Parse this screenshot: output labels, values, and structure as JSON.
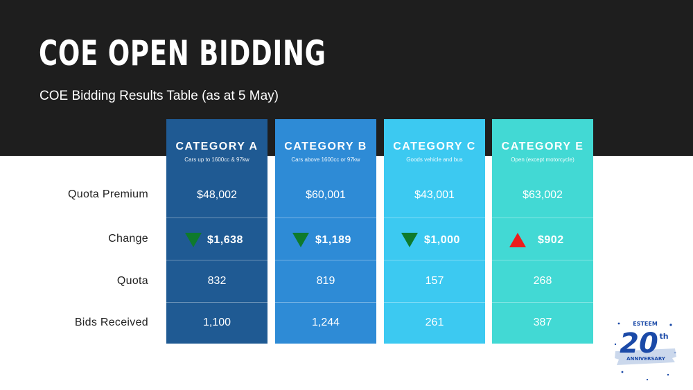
{
  "header": {
    "title": "COE OPEN BIDDING",
    "subtitle": "COE Bidding Results Table (as at 5 May)"
  },
  "row_labels": [
    "Quota Premium",
    "Change",
    "Quota",
    "Bids Received"
  ],
  "categories": [
    {
      "name": "CATEGORY A",
      "desc": "Cars up to 1600cc & 97kw",
      "premium": "$48,002",
      "change": "$1,638",
      "direction": "down",
      "quota": "832",
      "bids": "1,100",
      "color": "#1f5a93"
    },
    {
      "name": "CATEGORY B",
      "desc": "Cars above 1600cc or 97kw",
      "premium": "$60,001",
      "change": "$1,189",
      "direction": "down",
      "quota": "819",
      "bids": "1,244",
      "color": "#2e8bd6"
    },
    {
      "name": "CATEGORY C",
      "desc": "Goods vehicle and bus",
      "premium": "$43,001",
      "change": "$1,000",
      "direction": "down",
      "quota": "157",
      "bids": "261",
      "color": "#3cc9f1"
    },
    {
      "name": "CATEGORY E",
      "desc": "Open (except motorcycle)",
      "premium": "$63,002",
      "change": "$902",
      "direction": "up",
      "quota": "268",
      "bids": "387",
      "color": "#42d9d4"
    }
  ],
  "colors": {
    "header_band": "#1e1e1e",
    "down_arrow": "#0e7a2c",
    "up_arrow": "#ee1c1c"
  },
  "logo": {
    "brand": "ESTEEM",
    "number": "20",
    "suffix": "th",
    "word": "ANNIVERSARY"
  }
}
